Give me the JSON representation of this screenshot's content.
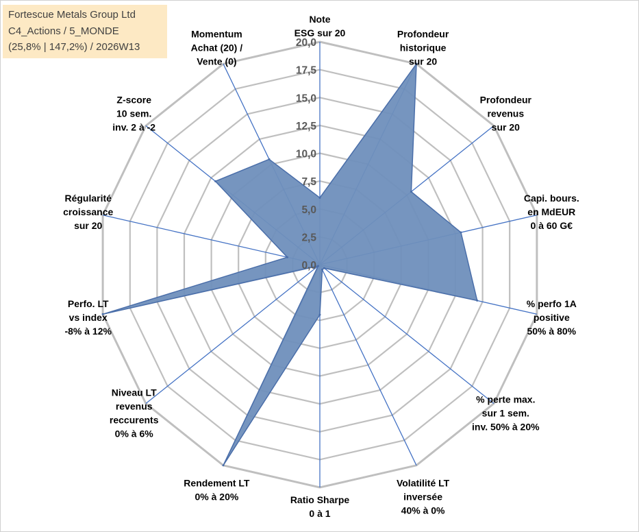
{
  "title_box": {
    "line1": "Fortescue Metals Group Ltd",
    "line2": "C4_Actions / 5_MONDE",
    "line3": "(25,8% | 147,2%) / 2026W13"
  },
  "chart_data": {
    "type": "radar",
    "title": "",
    "rmin": 0,
    "rmax": 20,
    "tick_labels": [
      "0,0",
      "2,5",
      "5,0",
      "7,5",
      "10,0",
      "12,5",
      "15,0",
      "17,5",
      "20,0"
    ],
    "ticks": [
      0,
      2.5,
      5,
      7.5,
      10,
      12.5,
      15,
      17.5,
      20
    ],
    "grid": true,
    "axes": [
      {
        "label": [
          "Note",
          "ESG sur 20"
        ]
      },
      {
        "label": [
          "Profondeur",
          "historique",
          "sur 20"
        ]
      },
      {
        "label": [
          "Profondeur",
          "revenus",
          "sur 20"
        ]
      },
      {
        "label": [
          "Capi. bours.",
          "en MdEUR",
          "0 à 60 G€"
        ]
      },
      {
        "label": [
          "% perfo 1A",
          "positive",
          "50% à 80%"
        ]
      },
      {
        "label": [
          "% perte max.",
          "sur 1 sem.",
          "inv. 50% à 20%"
        ]
      },
      {
        "label": [
          "Volatilité LT",
          "inversée",
          "40% à 0%"
        ]
      },
      {
        "label": [
          "Ratio Sharpe",
          "0 à 1"
        ]
      },
      {
        "label": [
          "Rendement LT",
          "0% à 20%"
        ]
      },
      {
        "label": [
          "Niveau LT",
          "revenus",
          "reccurents",
          "0% à 6%"
        ]
      },
      {
        "label": [
          "Perfo. LT",
          "vs index",
          "-8% à 12%"
        ]
      },
      {
        "label": [
          "Régularité",
          "croissance",
          "sur 20"
        ]
      },
      {
        "label": [
          "Z-score",
          "10 sem.",
          "inv. 2 à -2"
        ]
      },
      {
        "label": [
          "Momentum",
          "Achat (20) /",
          "Vente (0)"
        ]
      }
    ],
    "series": [
      {
        "values": [
          6.0,
          20.0,
          10.5,
          13.0,
          14.5,
          0.5,
          0.5,
          4.5,
          20.0,
          0.2,
          20.0,
          3.0,
          12.0,
          10.5
        ],
        "color": "#6f8fbc",
        "stroke": "#4a6ea9"
      }
    ],
    "colors": {
      "grid": "#bfbfbf",
      "spokes": "#4472c4"
    }
  }
}
